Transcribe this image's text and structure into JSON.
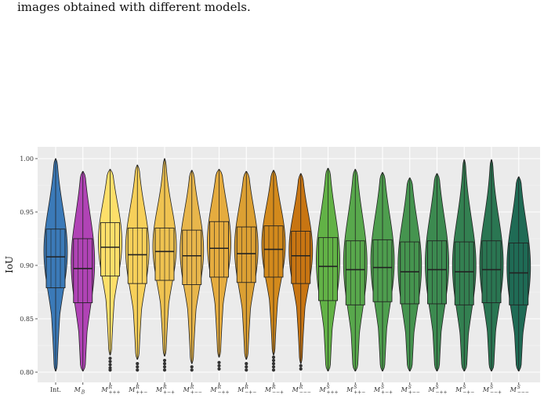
{
  "caption": "images obtained with different models.",
  "chart_data": {
    "type": "violin",
    "ylabel": "IoU",
    "ylim": [
      0.8,
      1.0
    ],
    "yticks": [
      "0.80",
      "0.85",
      "0.90",
      "0.95",
      "1.00"
    ],
    "grid": true,
    "categories": [
      {
        "label": "Int.",
        "main": "Int.",
        "sup": "",
        "sub": "",
        "color": "#3b7ab8",
        "min": 0.801,
        "q1": 0.879,
        "median": 0.908,
        "q3": 0.934,
        "max": 1.0,
        "outliers": []
      },
      {
        "label": "M_B",
        "main": "M",
        "sup": "",
        "sub": "B",
        "color": "#b043b5",
        "min": 0.801,
        "q1": 0.865,
        "median": 0.897,
        "q3": 0.925,
        "max": 0.988,
        "outliers": []
      },
      {
        "label": "M^R_+++",
        "main": "M",
        "sup": "R",
        "sub": "+++",
        "color": "#fddf6a",
        "min": 0.816,
        "q1": 0.89,
        "median": 0.917,
        "q3": 0.94,
        "max": 0.99,
        "outliers": [
          0.802,
          0.804,
          0.807,
          0.81,
          0.813
        ]
      },
      {
        "label": "M^R_++-",
        "main": "M",
        "sup": "R",
        "sub": "++−",
        "color": "#f7d05a",
        "min": 0.812,
        "q1": 0.883,
        "median": 0.91,
        "q3": 0.935,
        "max": 0.994,
        "outliers": [
          0.802,
          0.805,
          0.808
        ]
      },
      {
        "label": "M^R_+-+",
        "main": "M",
        "sup": "R",
        "sub": "+−+",
        "color": "#efc351",
        "min": 0.815,
        "q1": 0.886,
        "median": 0.913,
        "q3": 0.935,
        "max": 1.0,
        "outliers": [
          0.802,
          0.805,
          0.808,
          0.811
        ]
      },
      {
        "label": "M^R_+--",
        "main": "M",
        "sup": "R",
        "sub": "+−−",
        "color": "#e8b64b",
        "min": 0.808,
        "q1": 0.882,
        "median": 0.909,
        "q3": 0.933,
        "max": 0.989,
        "outliers": [
          0.802,
          0.805
        ]
      },
      {
        "label": "M^R_-++",
        "main": "M",
        "sup": "R",
        "sub": "−++",
        "color": "#e5ac3f",
        "min": 0.814,
        "q1": 0.889,
        "median": 0.916,
        "q3": 0.941,
        "max": 0.99,
        "outliers": [
          0.803,
          0.806,
          0.809
        ]
      },
      {
        "label": "M^R_-+-",
        "main": "M",
        "sup": "R",
        "sub": "−+−",
        "color": "#dca033",
        "min": 0.812,
        "q1": 0.884,
        "median": 0.911,
        "q3": 0.936,
        "max": 0.988,
        "outliers": [
          0.802,
          0.805,
          0.808
        ]
      },
      {
        "label": "M^R_--+",
        "main": "M",
        "sup": "R",
        "sub": "−−+",
        "color": "#d38a1c",
        "min": 0.816,
        "q1": 0.889,
        "median": 0.915,
        "q3": 0.937,
        "max": 0.989,
        "outliers": [
          0.802,
          0.805,
          0.808,
          0.811,
          0.814
        ]
      },
      {
        "label": "M^R_---",
        "main": "M",
        "sup": "R",
        "sub": "−−−",
        "color": "#c87512",
        "min": 0.808,
        "q1": 0.883,
        "median": 0.909,
        "q3": 0.932,
        "max": 0.986,
        "outliers": [
          0.803,
          0.806
        ]
      },
      {
        "label": "M^S_+++",
        "main": "M",
        "sup": "S",
        "sub": "+++",
        "color": "#62b246",
        "min": 0.801,
        "q1": 0.867,
        "median": 0.899,
        "q3": 0.926,
        "max": 0.991,
        "outliers": []
      },
      {
        "label": "M^S_++-",
        "main": "M",
        "sup": "S",
        "sub": "++−",
        "color": "#58a84c",
        "min": 0.801,
        "q1": 0.863,
        "median": 0.896,
        "q3": 0.923,
        "max": 0.99,
        "outliers": []
      },
      {
        "label": "M^S_+-+",
        "main": "M",
        "sup": "S",
        "sub": "+−+",
        "color": "#4e9e4e",
        "min": 0.801,
        "q1": 0.866,
        "median": 0.898,
        "q3": 0.924,
        "max": 0.987,
        "outliers": []
      },
      {
        "label": "M^S_+--",
        "main": "M",
        "sup": "S",
        "sub": "+−−",
        "color": "#45944f",
        "min": 0.801,
        "q1": 0.864,
        "median": 0.894,
        "q3": 0.922,
        "max": 0.982,
        "outliers": []
      },
      {
        "label": "M^S_-++",
        "main": "M",
        "sup": "S",
        "sub": "−++",
        "color": "#3c8a50",
        "min": 0.801,
        "q1": 0.864,
        "median": 0.896,
        "q3": 0.923,
        "max": 0.986,
        "outliers": []
      },
      {
        "label": "M^S_-+-",
        "main": "M",
        "sup": "S",
        "sub": "−+−",
        "color": "#338051",
        "min": 0.801,
        "q1": 0.863,
        "median": 0.894,
        "q3": 0.922,
        "max": 0.999,
        "outliers": []
      },
      {
        "label": "M^S_--+",
        "main": "M",
        "sup": "S",
        "sub": "−−+",
        "color": "#2a7652",
        "min": 0.801,
        "q1": 0.865,
        "median": 0.896,
        "q3": 0.923,
        "max": 0.999,
        "outliers": []
      },
      {
        "label": "M^S_---",
        "main": "M",
        "sup": "S",
        "sub": "−−−",
        "color": "#1f6b55",
        "min": 0.801,
        "q1": 0.863,
        "median": 0.893,
        "q3": 0.921,
        "max": 0.983,
        "outliers": []
      }
    ]
  }
}
